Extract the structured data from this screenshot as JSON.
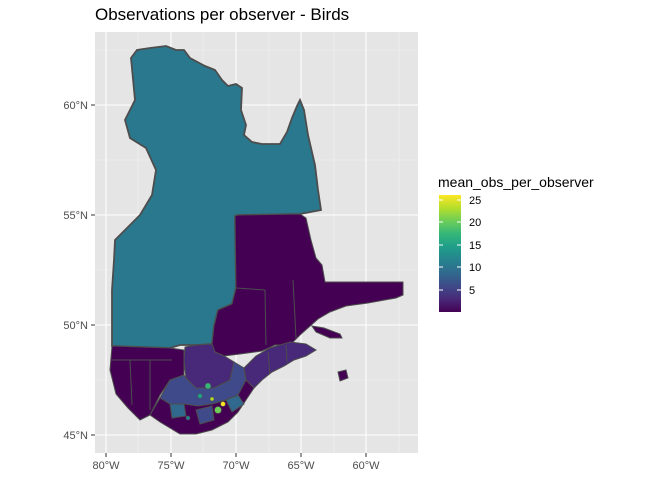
{
  "title": "Observations per observer - Birds",
  "axes": {
    "x_ticks": [
      "80°W",
      "75°W",
      "70°W",
      "65°W",
      "60°W"
    ],
    "y_ticks": [
      "60°N",
      "55°N",
      "50°N",
      "45°N"
    ]
  },
  "legend": {
    "title": "mean_obs_per_observer",
    "ticks": [
      "25",
      "20",
      "15",
      "10",
      "5"
    ],
    "placement": "right",
    "range": [
      1,
      25.5
    ],
    "palette": [
      "#440154",
      "#482878",
      "#3e4a89",
      "#31688e",
      "#26828e",
      "#1f9e89",
      "#35b779",
      "#6ece58",
      "#b5de2b",
      "#fde725"
    ]
  },
  "colors": {
    "panel_background": "#e5e5e5",
    "grid": "#ffffff",
    "region_outline": "#4d4d4d"
  }
}
